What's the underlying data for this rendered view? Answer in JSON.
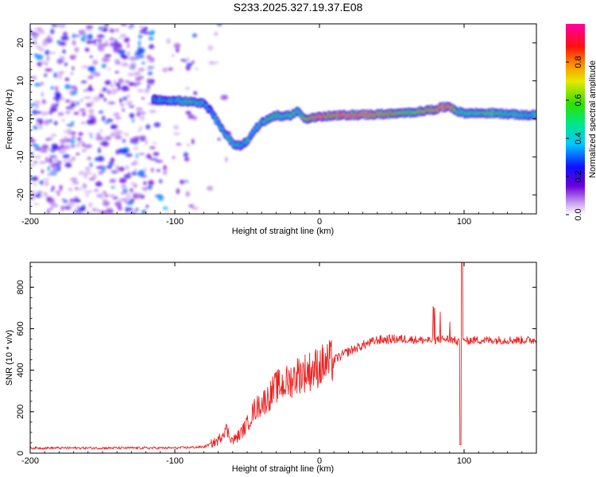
{
  "title": "S233.2025.327.19.37.E08",
  "chart_data": [
    {
      "type": "heatmap",
      "title": "",
      "xlabel": "Height of straight line (km)",
      "ylabel": "Frequency (Hz)",
      "xlim": [
        -200,
        150
      ],
      "ylim": [
        -25,
        25
      ],
      "x_ticks": [
        -200,
        -100,
        0,
        100
      ],
      "y_ticks": [
        -20,
        -10,
        0,
        10,
        20
      ],
      "colorbar": {
        "label": "Normalized spectral amplitude",
        "range": [
          0,
          1
        ],
        "ticks": [
          0.0,
          0.2,
          0.4,
          0.6,
          0.8
        ],
        "colormap": "rainbow (purple-blue-cyan-green-yellow-red-magenta)"
      },
      "ridge": {
        "height_km": [
          -115,
          -100,
          -90,
          -80,
          -75,
          -70,
          -65,
          -60,
          -55,
          -50,
          -45,
          -40,
          -35,
          -30,
          -25,
          -20,
          -15,
          -10,
          -5,
          0,
          10,
          20,
          40,
          60,
          70,
          80,
          85,
          90,
          95,
          100,
          120,
          140,
          150
        ],
        "frequency_hz": [
          5,
          4.8,
          4.5,
          4,
          2,
          -1,
          -4,
          -6.5,
          -7,
          -6,
          -3,
          -1,
          0,
          1,
          0.5,
          1,
          2,
          0,
          0.3,
          0.5,
          0.8,
          1,
          1.2,
          1.5,
          2,
          2.5,
          3,
          3.3,
          2,
          1.5,
          1.5,
          1,
          1
        ],
        "amplitude": [
          0.4,
          0.45,
          0.55,
          0.45,
          0.4,
          0.45,
          0.5,
          0.5,
          0.45,
          0.5,
          0.45,
          0.5,
          0.55,
          0.6,
          0.55,
          0.6,
          0.55,
          0.7,
          0.9,
          0.95,
          0.9,
          0.95,
          0.85,
          0.7,
          0.75,
          0.85,
          0.95,
          0.9,
          0.6,
          0.55,
          0.6,
          0.55,
          0.5
        ]
      },
      "noise_region": {
        "height_km": [
          -200,
          -80
        ],
        "frequency_hz": [
          -25,
          25
        ],
        "amplitude": [
          0.0,
          0.3
        ]
      }
    },
    {
      "type": "line",
      "title": "",
      "xlabel": "Height of straight line (km)",
      "ylabel": "SNR (10 * v/v)",
      "xlim": [
        -200,
        150
      ],
      "ylim": [
        0,
        920
      ],
      "x_ticks": [
        -200,
        -100,
        0,
        100
      ],
      "y_ticks": [
        0,
        200,
        400,
        600,
        800
      ],
      "series": [
        {
          "name": "SNR",
          "color": "#ee2222",
          "x": [
            -200,
            -150,
            -100,
            -80,
            -70,
            -65,
            -60,
            -55,
            -50,
            -45,
            -40,
            -35,
            -30,
            -25,
            -20,
            -15,
            -10,
            -5,
            0,
            5,
            10,
            15,
            20,
            30,
            40,
            50,
            60,
            70,
            80,
            85,
            90,
            95,
            98,
            100,
            105,
            110,
            120,
            130,
            140,
            150
          ],
          "y": [
            25,
            25,
            25,
            30,
            60,
            120,
            60,
            90,
            140,
            210,
            240,
            270,
            320,
            330,
            350,
            380,
            390,
            400,
            420,
            430,
            450,
            470,
            490,
            520,
            545,
            550,
            550,
            545,
            545,
            550,
            550,
            540,
            520,
            540,
            545,
            545,
            545,
            545,
            545,
            545
          ]
        }
      ]
    }
  ]
}
